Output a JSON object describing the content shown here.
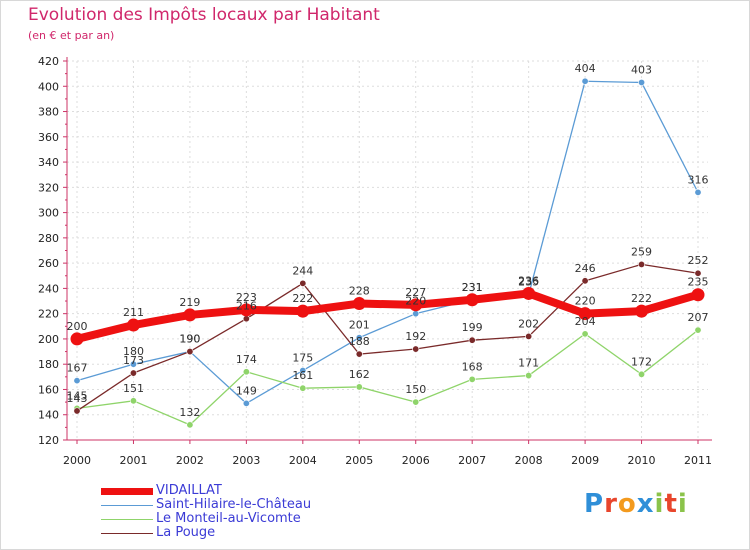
{
  "header": {
    "title": "Evolution des Impôts locaux par Habitant",
    "subtitle": "(en € et par an)"
  },
  "logo": {
    "text": "Proxiti",
    "letter_colors": [
      "#2f8fd8",
      "#e8452c",
      "#f39a1e",
      "#2f8fd8",
      "#8bc34a",
      "#e8452c",
      "#8bc34a"
    ]
  },
  "chart_data": {
    "type": "line",
    "title": "Evolution des Impôts locaux par Habitant",
    "subtitle": "(en € et par an)",
    "xlabel": "",
    "ylabel": "",
    "categories": [
      "2000",
      "2001",
      "2002",
      "2003",
      "2004",
      "2005",
      "2006",
      "2007",
      "2008",
      "2009",
      "2010",
      "2011"
    ],
    "ylim": [
      120,
      420
    ],
    "yticks": [
      120,
      140,
      160,
      180,
      200,
      220,
      240,
      260,
      280,
      300,
      320,
      340,
      360,
      380,
      400,
      420
    ],
    "grid": true,
    "legend_position": "bottom-left",
    "series": [
      {
        "name": "VIDAILLAT",
        "color": "#ee1111",
        "values": [
          200,
          211,
          219,
          223,
          222,
          228,
          227,
          231,
          236,
          220,
          222,
          235
        ],
        "labels": [
          "200",
          "211",
          "219",
          "223",
          "222",
          "228",
          "227",
          "231",
          "236",
          "220",
          "222",
          "235"
        ]
      },
      {
        "name": "Saint-Hilaire-le-Château",
        "color": "#5b9bd5",
        "values": [
          167,
          180,
          190,
          149,
          175,
          201,
          220,
          231,
          235,
          404,
          403,
          316
        ],
        "labels": [
          "167",
          "180",
          "190",
          "149",
          "175",
          "201",
          "220",
          "231",
          "235",
          "404",
          "403",
          "316"
        ]
      },
      {
        "name": "Le Monteil-au-Vicomte",
        "color": "#8fd46a",
        "values": [
          145,
          151,
          132,
          174,
          161,
          162,
          150,
          168,
          171,
          204,
          172,
          207
        ],
        "labels": [
          "145",
          "151",
          "132",
          "174",
          "161",
          "162",
          "150",
          "168",
          "171",
          "204",
          "172",
          "207"
        ]
      },
      {
        "name": "La Pouge",
        "color": "#7a2a2a",
        "values": [
          143,
          173,
          190,
          216,
          244,
          188,
          192,
          199,
          202,
          246,
          259,
          252
        ],
        "labels": [
          "143",
          "173",
          "190",
          "216",
          "244",
          "188",
          "192",
          "199",
          "202",
          "246",
          "259",
          "252"
        ]
      }
    ]
  }
}
